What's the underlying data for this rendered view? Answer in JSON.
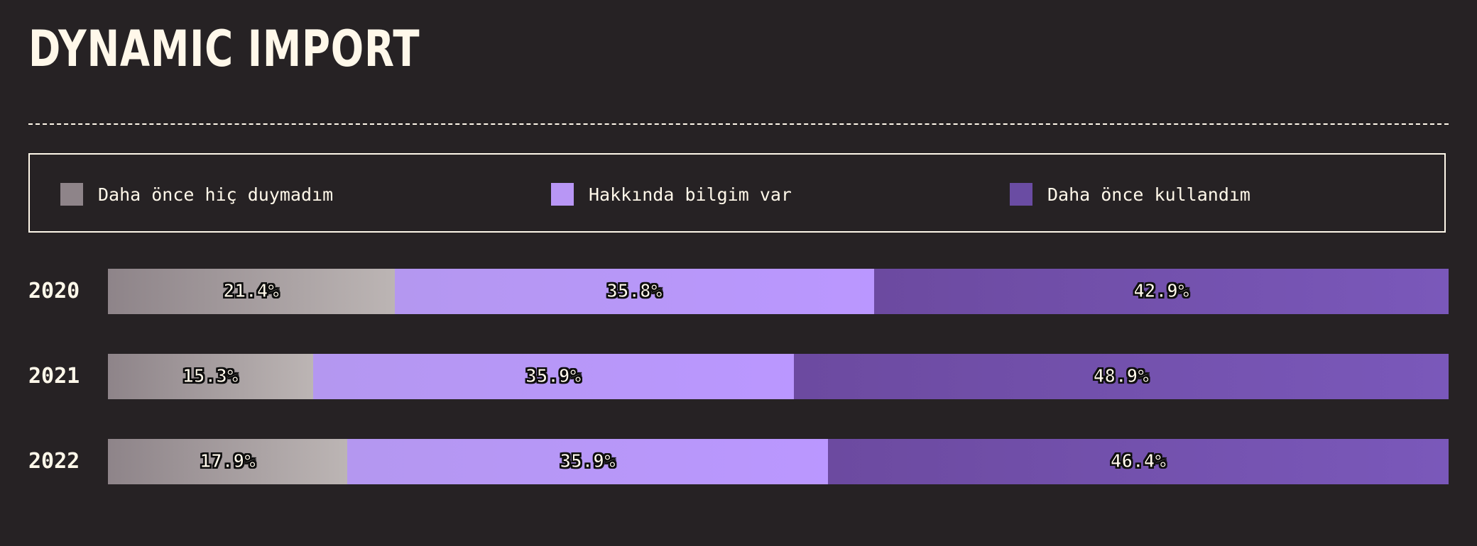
{
  "chart_data": {
    "type": "bar",
    "orientation": "horizontal",
    "stacked": true,
    "normalized": true,
    "title": "DYNAMIC IMPORT",
    "categories": [
      "2020",
      "2021",
      "2022"
    ],
    "series": [
      {
        "name": "Daha önce hiç duymadım",
        "values": [
          21.4,
          15.3,
          17.9
        ],
        "labels": [
          "21.4%",
          "15.3%",
          "17.9%"
        ]
      },
      {
        "name": "Hakkında bilgim var",
        "values": [
          35.8,
          35.9,
          35.9
        ],
        "labels": [
          "35.8%",
          "35.9%",
          "35.9%"
        ]
      },
      {
        "name": "Daha önce kullandım",
        "values": [
          42.9,
          48.9,
          46.4
        ],
        "labels": [
          "42.9%",
          "48.9%",
          "46.4%"
        ]
      }
    ],
    "legend_position": "top",
    "grid": false
  },
  "colors": {
    "background": "#262224",
    "text": "#FFF8EA",
    "series": [
      {
        "from": "#8E8489",
        "to": "#BCB5B4",
        "swatch": "#8E8489"
      },
      {
        "from": "#B497F0",
        "to": "#BA97FF",
        "swatch": "#B896F5"
      },
      {
        "from": "#6C4AA0",
        "to": "#7A58BA",
        "swatch": "#6A4CA3"
      }
    ]
  }
}
